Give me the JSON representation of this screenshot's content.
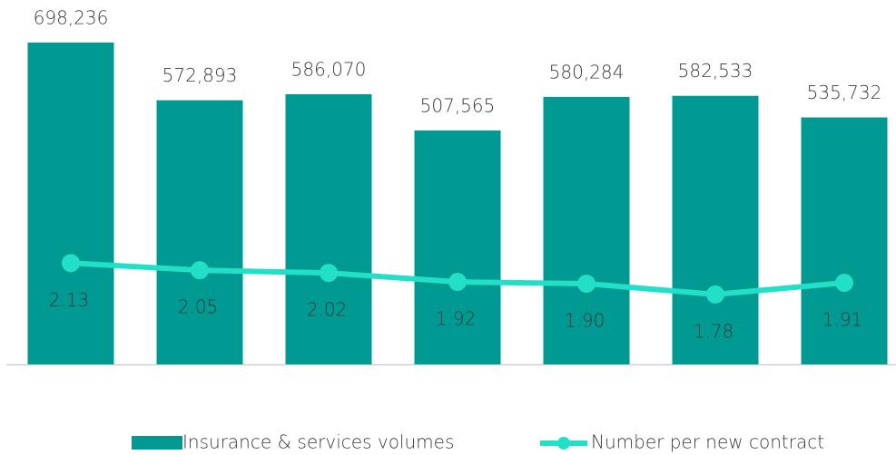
{
  "chart_data": {
    "type": "bar",
    "categories": [
      null,
      null,
      null,
      null,
      null,
      null,
      null
    ],
    "ylim": [
      0,
      700000
    ],
    "y2lim": [
      1.0,
      4.6
    ],
    "series": [
      {
        "name": "Insurance & services volumes",
        "type": "bar",
        "color": "#009a93",
        "values": [
          698236,
          572893,
          586070,
          507565,
          580284,
          582533,
          535732
        ],
        "value_labels": [
          "698,236",
          "572,893",
          "586,070",
          "507,565",
          "580,284",
          "582,533",
          "535,732"
        ]
      },
      {
        "name": "Number per new contract",
        "type": "line",
        "axis": "y2",
        "color": "#22e0c8",
        "values": [
          2.13,
          2.05,
          2.02,
          1.92,
          1.9,
          1.78,
          1.91
        ],
        "value_labels": [
          "2.13",
          "2.05",
          "2.02",
          "1.92",
          "1.90",
          "1.78",
          "1.91"
        ]
      }
    ]
  }
}
